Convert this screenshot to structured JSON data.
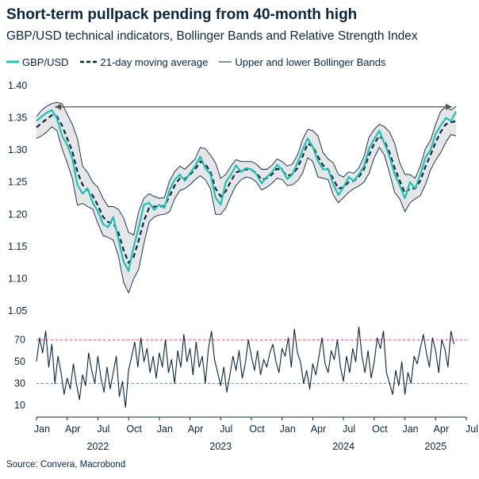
{
  "title": "Short-term pullpack pending from 40-month high",
  "subtitle": "GBP/USD technical indicators, Bollinger Bands and Relative Strength Index",
  "source": "Source: Convera, Macrobond",
  "colors": {
    "gbpusd": "#20c0b2",
    "ma": "#0b2540",
    "band": "#0b2540",
    "band_fill": "#e4e6e8",
    "rsi": "#0b2540",
    "rsi_upper": "#e06060",
    "rsi_lower": "#20c0b2",
    "text": "#0b2540"
  },
  "chart_data": [
    {
      "type": "line",
      "panel": "price",
      "legend": [
        {
          "name": "GBP/USD",
          "style": "solid-teal"
        },
        {
          "name": "21-day moving average",
          "style": "dashed-navy"
        },
        {
          "name": "Upper and lower Bollinger Bands",
          "style": "thin-navy"
        }
      ],
      "ylim": [
        1.05,
        1.4
      ],
      "y_ticks": [
        "1.40",
        "1.35",
        "1.30",
        "1.25",
        "1.20",
        "1.15",
        "1.10",
        "1.05"
      ],
      "y_tick_values": [
        1.4,
        1.35,
        1.3,
        1.25,
        1.2,
        1.15,
        1.1,
        1.05
      ],
      "x_range_months": [
        0,
        42
      ],
      "x_month_ticks": [
        {
          "label": "Jan",
          "m": 0
        },
        {
          "label": "Apr",
          "m": 3
        },
        {
          "label": "Jul",
          "m": 6
        },
        {
          "label": "Oct",
          "m": 9
        },
        {
          "label": "Jan",
          "m": 12
        },
        {
          "label": "Apr",
          "m": 15
        },
        {
          "label": "Jul",
          "m": 18
        },
        {
          "label": "Oct",
          "m": 21
        },
        {
          "label": "Jan",
          "m": 24
        },
        {
          "label": "Apr",
          "m": 27
        },
        {
          "label": "Jul",
          "m": 30
        },
        {
          "label": "Oct",
          "m": 33
        },
        {
          "label": "Jan",
          "m": 36
        },
        {
          "label": "Apr",
          "m": 39
        },
        {
          "label": "Jul",
          "m": 42
        }
      ],
      "x_year_labels": [
        {
          "label": "2022",
          "m": 6
        },
        {
          "label": "2023",
          "m": 18
        },
        {
          "label": "2024",
          "m": 30
        },
        {
          "label": "2025",
          "m": 39
        }
      ],
      "series": [
        {
          "name": "GBP/USD",
          "x_months": [
            0,
            0.5,
            1,
            1.5,
            2,
            2.5,
            3,
            3.5,
            4,
            4.5,
            5,
            5.5,
            6,
            6.5,
            7,
            7.5,
            8,
            8.5,
            9,
            9.5,
            10,
            10.5,
            11,
            11.5,
            12,
            12.5,
            13,
            13.5,
            14,
            14.5,
            15,
            15.5,
            16,
            16.5,
            17,
            17.5,
            18,
            18.5,
            19,
            19.5,
            20,
            20.5,
            21,
            21.5,
            22,
            22.5,
            23,
            23.5,
            24,
            24.5,
            25,
            25.5,
            26,
            26.5,
            27,
            27.5,
            28,
            28.5,
            29,
            29.5,
            30,
            30.5,
            31,
            31.5,
            32,
            32.5,
            33,
            33.5,
            34,
            34.5,
            35,
            35.5,
            36,
            36.5,
            37,
            37.5,
            38,
            38.5,
            39,
            39.5,
            40,
            40.5,
            41
          ],
          "y": [
            1.345,
            1.352,
            1.358,
            1.362,
            1.349,
            1.322,
            1.308,
            1.287,
            1.246,
            1.232,
            1.24,
            1.218,
            1.205,
            1.185,
            1.18,
            1.196,
            1.162,
            1.127,
            1.112,
            1.15,
            1.18,
            1.215,
            1.218,
            1.207,
            1.215,
            1.21,
            1.238,
            1.254,
            1.262,
            1.252,
            1.264,
            1.275,
            1.29,
            1.272,
            1.262,
            1.226,
            1.215,
            1.25,
            1.262,
            1.276,
            1.266,
            1.272,
            1.27,
            1.262,
            1.248,
            1.258,
            1.265,
            1.277,
            1.27,
            1.255,
            1.262,
            1.28,
            1.3,
            1.318,
            1.305,
            1.283,
            1.27,
            1.27,
            1.247,
            1.23,
            1.242,
            1.258,
            1.252,
            1.262,
            1.275,
            1.302,
            1.317,
            1.33,
            1.31,
            1.29,
            1.262,
            1.245,
            1.225,
            1.25,
            1.24,
            1.262,
            1.288,
            1.3,
            1.325,
            1.338,
            1.35,
            1.345,
            1.36
          ]
        },
        {
          "name": "21-day moving average",
          "x_months": [
            0,
            0.5,
            1,
            1.5,
            2,
            2.5,
            3,
            3.5,
            4,
            4.5,
            5,
            5.5,
            6,
            6.5,
            7,
            7.5,
            8,
            8.5,
            9,
            9.5,
            10,
            10.5,
            11,
            11.5,
            12,
            12.5,
            13,
            13.5,
            14,
            14.5,
            15,
            15.5,
            16,
            16.5,
            17,
            17.5,
            18,
            18.5,
            19,
            19.5,
            20,
            20.5,
            21,
            21.5,
            22,
            22.5,
            23,
            23.5,
            24,
            24.5,
            25,
            25.5,
            26,
            26.5,
            27,
            27.5,
            28,
            28.5,
            29,
            29.5,
            30,
            30.5,
            31,
            31.5,
            32,
            32.5,
            33,
            33.5,
            34,
            34.5,
            35,
            35.5,
            36,
            36.5,
            37,
            37.5,
            38,
            38.5,
            39,
            39.5,
            40,
            40.5,
            41
          ],
          "y": [
            1.335,
            1.342,
            1.348,
            1.354,
            1.352,
            1.338,
            1.318,
            1.298,
            1.266,
            1.246,
            1.238,
            1.229,
            1.214,
            1.196,
            1.188,
            1.186,
            1.172,
            1.145,
            1.125,
            1.134,
            1.16,
            1.19,
            1.21,
            1.212,
            1.212,
            1.213,
            1.228,
            1.245,
            1.256,
            1.255,
            1.262,
            1.27,
            1.282,
            1.278,
            1.266,
            1.24,
            1.228,
            1.236,
            1.252,
            1.265,
            1.268,
            1.27,
            1.269,
            1.264,
            1.254,
            1.256,
            1.262,
            1.271,
            1.268,
            1.26,
            1.262,
            1.272,
            1.29,
            1.31,
            1.306,
            1.29,
            1.276,
            1.27,
            1.255,
            1.24,
            1.242,
            1.25,
            1.252,
            1.258,
            1.27,
            1.292,
            1.31,
            1.322,
            1.314,
            1.296,
            1.272,
            1.252,
            1.233,
            1.24,
            1.24,
            1.252,
            1.274,
            1.292,
            1.312,
            1.328,
            1.34,
            1.343,
            1.345
          ]
        },
        {
          "name": "Upper and lower Bollinger Bands",
          "x_months": [
            0,
            0.5,
            1,
            1.5,
            2,
            2.5,
            3,
            3.5,
            4,
            4.5,
            5,
            5.5,
            6,
            6.5,
            7,
            7.5,
            8,
            8.5,
            9,
            9.5,
            10,
            10.5,
            11,
            11.5,
            12,
            12.5,
            13,
            13.5,
            14,
            14.5,
            15,
            15.5,
            16,
            16.5,
            17,
            17.5,
            18,
            18.5,
            19,
            19.5,
            20,
            20.5,
            21,
            21.5,
            22,
            22.5,
            23,
            23.5,
            24,
            24.5,
            25,
            25.5,
            26,
            26.5,
            27,
            27.5,
            28,
            28.5,
            29,
            29.5,
            30,
            30.5,
            31,
            31.5,
            32,
            32.5,
            33,
            33.5,
            34,
            34.5,
            35,
            35.5,
            36,
            36.5,
            37,
            37.5,
            38,
            38.5,
            39,
            39.5,
            40,
            40.5,
            41
          ],
          "upper": [
            1.352,
            1.362,
            1.368,
            1.372,
            1.374,
            1.372,
            1.356,
            1.34,
            1.318,
            1.275,
            1.265,
            1.25,
            1.242,
            1.225,
            1.212,
            1.212,
            1.208,
            1.195,
            1.172,
            1.168,
            1.205,
            1.225,
            1.232,
            1.228,
            1.225,
            1.226,
            1.252,
            1.266,
            1.275,
            1.27,
            1.278,
            1.286,
            1.304,
            1.302,
            1.292,
            1.28,
            1.256,
            1.262,
            1.275,
            1.285,
            1.282,
            1.282,
            1.282,
            1.278,
            1.27,
            1.27,
            1.276,
            1.286,
            1.282,
            1.275,
            1.278,
            1.292,
            1.316,
            1.332,
            1.33,
            1.322,
            1.296,
            1.286,
            1.28,
            1.262,
            1.258,
            1.266,
            1.264,
            1.272,
            1.29,
            1.32,
            1.332,
            1.34,
            1.336,
            1.328,
            1.31,
            1.28,
            1.262,
            1.262,
            1.256,
            1.275,
            1.302,
            1.315,
            1.34,
            1.36,
            1.368,
            1.362,
            1.368
          ],
          "lower": [
            1.318,
            1.322,
            1.328,
            1.336,
            1.33,
            1.302,
            1.28,
            1.256,
            1.214,
            1.217,
            1.212,
            1.208,
            1.186,
            1.167,
            1.164,
            1.16,
            1.136,
            1.095,
            1.078,
            1.1,
            1.115,
            1.155,
            1.188,
            1.196,
            1.199,
            1.2,
            1.204,
            1.224,
            1.237,
            1.24,
            1.246,
            1.254,
            1.26,
            1.254,
            1.24,
            1.2,
            1.2,
            1.21,
            1.229,
            1.245,
            1.254,
            1.258,
            1.256,
            1.25,
            1.238,
            1.242,
            1.248,
            1.256,
            1.254,
            1.245,
            1.246,
            1.252,
            1.264,
            1.288,
            1.282,
            1.258,
            1.256,
            1.254,
            1.23,
            1.218,
            1.226,
            1.234,
            1.24,
            1.244,
            1.25,
            1.264,
            1.288,
            1.304,
            1.292,
            1.264,
            1.234,
            1.224,
            1.204,
            1.218,
            1.224,
            1.229,
            1.246,
            1.269,
            1.284,
            1.296,
            1.312,
            1.324,
            1.322
          ]
        }
      ],
      "annotation": {
        "type": "double-arrow",
        "x_months": [
          1.8,
          40.6
        ],
        "y": 1.367
      }
    },
    {
      "type": "line",
      "panel": "rsi",
      "ylim": [
        2,
        85
      ],
      "y_ticks": [
        "70",
        "50",
        "30",
        "10"
      ],
      "y_tick_values": [
        70,
        50,
        30,
        10
      ],
      "reference_lines": [
        {
          "value": 70,
          "style": "dashed-red"
        },
        {
          "value": 30,
          "style": "dashed-teal"
        }
      ],
      "series": [
        {
          "name": "RSI",
          "x_months": [
            0,
            0.3,
            0.6,
            0.9,
            1.2,
            1.5,
            1.8,
            2.1,
            2.4,
            2.7,
            3,
            3.3,
            3.6,
            3.9,
            4.2,
            4.5,
            4.8,
            5.1,
            5.4,
            5.7,
            6,
            6.3,
            6.6,
            6.9,
            7.2,
            7.5,
            7.8,
            8.1,
            8.4,
            8.7,
            9,
            9.3,
            9.6,
            9.9,
            10.2,
            10.5,
            10.8,
            11.1,
            11.4,
            11.7,
            12,
            12.3,
            12.6,
            12.9,
            13.2,
            13.5,
            13.8,
            14.1,
            14.4,
            14.7,
            15,
            15.3,
            15.6,
            15.9,
            16.2,
            16.5,
            16.8,
            17.1,
            17.4,
            17.7,
            18,
            18.3,
            18.6,
            18.9,
            19.2,
            19.5,
            19.8,
            20.1,
            20.4,
            20.7,
            21,
            21.3,
            21.6,
            21.9,
            22.2,
            22.5,
            22.8,
            23.1,
            23.4,
            23.7,
            24,
            24.3,
            24.6,
            24.9,
            25.2,
            25.5,
            25.8,
            26.1,
            26.4,
            26.7,
            27,
            27.3,
            27.6,
            27.9,
            28.2,
            28.5,
            28.8,
            29.1,
            29.4,
            29.7,
            30,
            30.3,
            30.6,
            30.9,
            31.2,
            31.5,
            31.8,
            32.1,
            32.4,
            32.7,
            33,
            33.3,
            33.6,
            33.9,
            34.2,
            34.5,
            34.8,
            35.1,
            35.4,
            35.7,
            36,
            36.3,
            36.6,
            36.9,
            37.2,
            37.5,
            37.8,
            38.1,
            38.4,
            38.7,
            39,
            39.3,
            39.6,
            39.9,
            40.2,
            40.5,
            40.8
          ],
          "values": [
            50,
            72,
            58,
            78,
            45,
            66,
            30,
            55,
            40,
            20,
            35,
            25,
            48,
            30,
            15,
            38,
            28,
            58,
            42,
            30,
            55,
            35,
            22,
            45,
            25,
            40,
            55,
            18,
            32,
            8,
            42,
            55,
            68,
            45,
            72,
            50,
            62,
            40,
            55,
            35,
            58,
            45,
            70,
            40,
            52,
            30,
            60,
            45,
            75,
            50,
            62,
            38,
            68,
            45,
            55,
            30,
            62,
            78,
            52,
            40,
            28,
            45,
            22,
            38,
            55,
            42,
            60,
            35,
            48,
            70,
            55,
            42,
            60,
            38,
            52,
            45,
            58,
            66,
            50,
            40,
            62,
            55,
            72,
            45,
            80,
            58,
            50,
            30,
            42,
            25,
            48,
            38,
            55,
            72,
            48,
            40,
            60,
            52,
            70,
            45,
            32,
            55,
            40,
            62,
            50,
            82,
            55,
            40,
            60,
            35,
            50,
            72,
            62,
            78,
            40,
            30,
            20,
            42,
            28,
            50,
            20,
            40,
            30,
            55,
            48,
            62,
            75,
            58,
            45,
            72,
            60,
            40,
            70,
            62,
            45,
            78,
            66
          ]
        }
      ]
    }
  ]
}
